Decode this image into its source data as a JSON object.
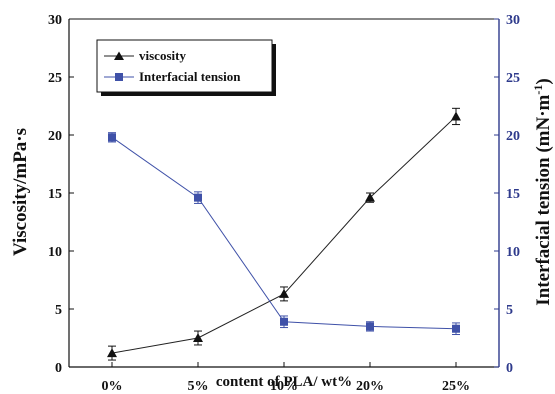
{
  "chart_data": {
    "type": "line",
    "categories": [
      "0%",
      "5%",
      "10%",
      "20%",
      "25%"
    ],
    "xlabel": "content of  PLA/ wt%",
    "y_left": {
      "label": "Viscosity/mPa·s",
      "lim": [
        0,
        30
      ],
      "ticks": [
        "0",
        "5",
        "10",
        "15",
        "20",
        "25",
        "30"
      ]
    },
    "y_right": {
      "label": "Interfacial tension (mN·m",
      "label_sup": "-1",
      "label_end": ")",
      "lim": [
        0,
        30
      ],
      "ticks": [
        "0",
        "5",
        "10",
        "15",
        "20",
        "25",
        "30"
      ]
    },
    "series": [
      {
        "name": "viscosity",
        "axis": "left",
        "marker": "triangle",
        "color": "#222222",
        "values": [
          1.2,
          2.5,
          6.3,
          14.6,
          21.6
        ],
        "errors": [
          0.6,
          0.6,
          0.6,
          0.4,
          0.7
        ]
      },
      {
        "name": "Interfacial tension",
        "axis": "right",
        "marker": "square",
        "color": "#3f51a8",
        "values": [
          19.8,
          14.6,
          3.9,
          3.5,
          3.3
        ],
        "errors": [
          0.4,
          0.5,
          0.5,
          0.4,
          0.5
        ]
      }
    ],
    "legend": "top-left",
    "colors": {
      "left_axis": "#111111",
      "right_axis": "#2e3a8c"
    }
  }
}
